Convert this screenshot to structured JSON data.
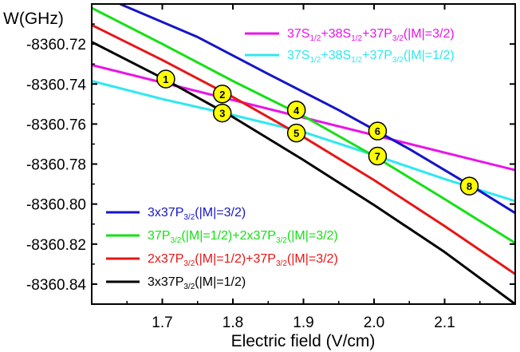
{
  "chart_data": {
    "type": "line",
    "xlabel": "Electric field (V/cm)",
    "ylabel": "W(GHz)",
    "xlim": [
      1.6,
      2.2
    ],
    "ylim": [
      -8360.85,
      -8360.7
    ],
    "x_ticks": [
      {
        "value": 1.7,
        "label": "1.7"
      },
      {
        "value": 1.8,
        "label": "1.8"
      },
      {
        "value": 1.9,
        "label": "1.9"
      },
      {
        "value": 2.0,
        "label": "2.0"
      },
      {
        "value": 2.1,
        "label": "2.1"
      }
    ],
    "y_ticks": [
      {
        "value": -8360.72,
        "label": "-8360.72"
      },
      {
        "value": -8360.74,
        "label": "-8360.74"
      },
      {
        "value": -8360.76,
        "label": "-8360.76"
      },
      {
        "value": -8360.78,
        "label": "-8360.78"
      },
      {
        "value": -8360.8,
        "label": "-8360.80"
      },
      {
        "value": -8360.82,
        "label": "-8360.82"
      },
      {
        "value": -8360.84,
        "label": "-8360.84"
      }
    ],
    "series": [
      {
        "key": "s1",
        "name_parts": [
          {
            "t": "37S",
            "sub": false
          },
          {
            "t": "1/2",
            "sub": true
          },
          {
            "t": "+38S",
            "sub": false
          },
          {
            "t": "1/2",
            "sub": true
          },
          {
            "t": "+37P",
            "sub": false
          },
          {
            "t": "3/2",
            "sub": true
          },
          {
            "t": "(|M|=3/2)",
            "sub": false
          }
        ],
        "color": "#e815e8",
        "x": [
          1.6,
          2.2
        ],
        "y": [
          -8360.7305,
          -8360.783
        ]
      },
      {
        "key": "s2",
        "name_parts": [
          {
            "t": "37S",
            "sub": false
          },
          {
            "t": "1/2",
            "sub": true
          },
          {
            "t": "+38S",
            "sub": false
          },
          {
            "t": "1/2",
            "sub": true
          },
          {
            "t": "+37P",
            "sub": false
          },
          {
            "t": "3/2",
            "sub": true
          },
          {
            "t": "(|M|=1/2)",
            "sub": false
          }
        ],
        "color": "#2ee8f0",
        "x": [
          1.6,
          1.7,
          1.8,
          1.9,
          2.0,
          2.1,
          2.2
        ],
        "y": [
          -8360.7385,
          -8360.7475,
          -8360.7555,
          -8360.764,
          -8360.7755,
          -8360.7875,
          -8360.7985
        ]
      },
      {
        "key": "s3",
        "name_parts": [
          {
            "t": "3x37P",
            "sub": false
          },
          {
            "t": "3/2",
            "sub": true
          },
          {
            "t": "(|M|=3/2)",
            "sub": false
          }
        ],
        "color": "#1515c8",
        "x": [
          1.64,
          1.75,
          1.85,
          1.95,
          2.05,
          2.15,
          2.2
        ],
        "y": [
          -8360.7,
          -8360.7165,
          -8360.735,
          -8360.753,
          -8360.7725,
          -8360.7935,
          -8360.8045
        ]
      },
      {
        "key": "s4",
        "name_parts": [
          {
            "t": "37P",
            "sub": false
          },
          {
            "t": "3/2",
            "sub": true
          },
          {
            "t": "(|M|=1/2)+2x37P",
            "sub": false
          },
          {
            "t": "3/2",
            "sub": true
          },
          {
            "t": "(|M|=3/2)",
            "sub": false
          }
        ],
        "color": "#15e015",
        "x": [
          1.6,
          1.7,
          1.8,
          1.9,
          2.0,
          2.1,
          2.2
        ],
        "y": [
          -8360.702,
          -8360.72,
          -8360.7385,
          -8360.756,
          -8360.776,
          -8360.7975,
          -8360.8195
        ]
      },
      {
        "key": "s5",
        "name_parts": [
          {
            "t": "2x37P",
            "sub": false
          },
          {
            "t": "3/2",
            "sub": true
          },
          {
            "t": "(|M|=1/2)+37P",
            "sub": false
          },
          {
            "t": "3/2",
            "sub": true
          },
          {
            "t": "(|M|=3/2)",
            "sub": false
          }
        ],
        "color": "#e81515",
        "x": [
          1.6,
          1.7,
          1.8,
          1.9,
          2.0,
          2.1,
          2.2
        ],
        "y": [
          -8360.7105,
          -8360.728,
          -8360.7465,
          -8360.7665,
          -8360.788,
          -8360.811,
          -8360.835
        ]
      },
      {
        "key": "s6",
        "name_parts": [
          {
            "t": "3x37P",
            "sub": false
          },
          {
            "t": "3/2",
            "sub": true
          },
          {
            "t": "(|M|=1/2)",
            "sub": false
          }
        ],
        "color": "#000000",
        "x": [
          1.6,
          1.7,
          1.8,
          1.9,
          2.0,
          2.1,
          2.2
        ],
        "y": [
          -8360.719,
          -8360.737,
          -8360.7565,
          -8360.778,
          -8360.8005,
          -8360.824,
          -8360.85
        ]
      }
    ],
    "top_legend_keys": [
      "s1",
      "s2"
    ],
    "bottom_legend_keys": [
      "s3",
      "s4",
      "s5",
      "s6"
    ],
    "markers": [
      {
        "label": "1",
        "x": 1.705,
        "y": -8360.7375
      },
      {
        "label": "2",
        "x": 1.785,
        "y": -8360.745
      },
      {
        "label": "3",
        "x": 1.785,
        "y": -8360.7545
      },
      {
        "label": "4",
        "x": 1.89,
        "y": -8360.753
      },
      {
        "label": "5",
        "x": 1.89,
        "y": -8360.7645
      },
      {
        "label": "6",
        "x": 2.005,
        "y": -8360.7635
      },
      {
        "label": "7",
        "x": 2.005,
        "y": -8360.776
      },
      {
        "label": "8",
        "x": 2.135,
        "y": -8360.791
      }
    ],
    "grid": false,
    "legend_placement": [
      "top-right",
      "bottom-left"
    ]
  }
}
